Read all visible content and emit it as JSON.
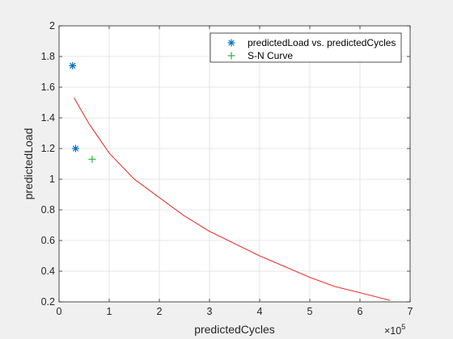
{
  "chart_data": {
    "type": "scatter",
    "xlabel": "predictedCycles",
    "ylabel": "predictedLoad",
    "x_exponent_label": "×10",
    "x_exponent_power": "5",
    "x_multiplier": 100000,
    "xlim": [
      0,
      7
    ],
    "ylim": [
      0.2,
      2
    ],
    "xticks": [
      0,
      1,
      2,
      3,
      4,
      5,
      6,
      7
    ],
    "yticks": [
      0.2,
      0.4,
      0.6,
      0.8,
      1,
      1.2,
      1.4,
      1.6,
      1.8,
      2
    ],
    "grid": true,
    "legend_position": "top-right",
    "series": [
      {
        "name": "predictedLoad vs. predictedCycles",
        "kind": "scatter",
        "marker": "asterisk",
        "color": "#0072bd",
        "x": [
          0.27,
          0.33
        ],
        "y": [
          1.74,
          1.2
        ]
      },
      {
        "name": "S-N Curve",
        "kind": "scatter",
        "marker": "plus",
        "color": "#2db52d",
        "x": [
          0.66
        ],
        "y": [
          1.13
        ]
      },
      {
        "name": "",
        "kind": "line",
        "color": "#e8322d",
        "x": [
          0.3,
          0.6,
          1,
          1.5,
          2,
          2.5,
          3,
          3.5,
          4,
          4.5,
          5,
          5.5,
          6,
          6.6
        ],
        "y": [
          1.53,
          1.36,
          1.17,
          1.0,
          0.88,
          0.76,
          0.66,
          0.58,
          0.5,
          0.43,
          0.36,
          0.3,
          0.26,
          0.21
        ]
      }
    ]
  }
}
